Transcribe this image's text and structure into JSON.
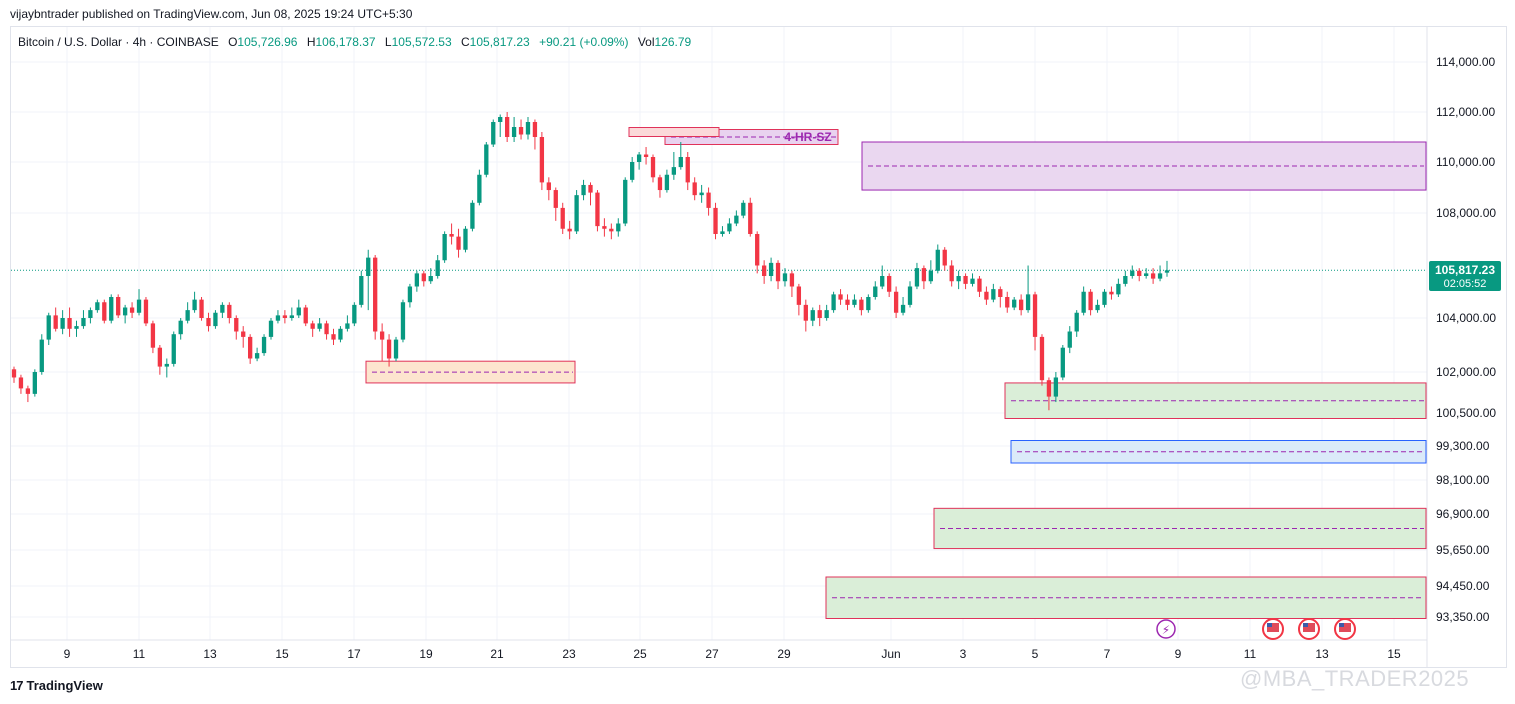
{
  "header": {
    "published": "vijaybntrader published on TradingView.com, Jun 08, 2025 19:24 UTC+5:30"
  },
  "legend": {
    "symbol": "Bitcoin / U.S. Dollar · 4h · COINBASE",
    "o_label": "O",
    "o_value": "105,726.96",
    "h_label": "H",
    "h_value": "106,178.37",
    "l_label": "L",
    "l_value": "105,572.53",
    "c_label": "C",
    "c_value": "105,817.23",
    "change": "+90.21 (+0.09%)",
    "vol_label": "Vol",
    "vol_value": "126.79"
  },
  "price_tag": {
    "price": "105,817.23",
    "countdown": "02:05:52"
  },
  "footer": {
    "brand": "TradingView",
    "watermark": "@MBA_TRADER2025"
  },
  "colors": {
    "up": "#089981",
    "down": "#f23645",
    "purple": "#9c27b0",
    "red_border": "#e0325a",
    "blue_border": "#2962ff"
  },
  "chart_data": {
    "type": "candlestick",
    "interval": "4h",
    "y_axis_ticks": [
      "114,000.00",
      "112,000.00",
      "110,000.00",
      "108,000.00",
      "104,000.00",
      "102,000.00",
      "100,500.00",
      "99,300.00",
      "98,100.00",
      "96,900.00",
      "95,650.00",
      "94,450.00",
      "93,350.00"
    ],
    "x_axis_ticks": [
      "9",
      "11",
      "13",
      "15",
      "17",
      "19",
      "21",
      "23",
      "25",
      "27",
      "29",
      "Jun",
      "3",
      "5",
      "7",
      "9",
      "11",
      "13",
      "15"
    ],
    "last_price": 105817.23,
    "zones": [
      {
        "label": "4-HR-SZ",
        "low": 110700,
        "high": 111300,
        "color": "purple"
      },
      {
        "label": "",
        "low": 108900,
        "high": 110800,
        "color": "purple"
      },
      {
        "label": "",
        "low": 101600,
        "high": 102400,
        "color": "orange"
      },
      {
        "label": "",
        "low": 100300,
        "high": 101600,
        "color": "green"
      },
      {
        "label": "",
        "low": 98700,
        "high": 99500,
        "color": "blue"
      },
      {
        "label": "",
        "low": 95700,
        "high": 97100,
        "color": "green"
      },
      {
        "label": "",
        "low": 93300,
        "high": 94750,
        "color": "green"
      }
    ],
    "candles": [
      [
        102100,
        101800,
        102200,
        101600
      ],
      [
        101800,
        101400,
        101900,
        101200
      ],
      [
        101400,
        101200,
        101500,
        100900
      ],
      [
        101200,
        102000,
        102100,
        101100
      ],
      [
        102000,
        103200,
        103400,
        101900
      ],
      [
        103200,
        104100,
        104200,
        103000
      ],
      [
        104100,
        103600,
        104400,
        103500
      ],
      [
        103600,
        104000,
        104300,
        103400
      ],
      [
        104000,
        103600,
        104400,
        103300
      ],
      [
        103600,
        103700,
        103900,
        103300
      ],
      [
        103700,
        104000,
        104300,
        103600
      ],
      [
        104000,
        104300,
        104400,
        103800
      ],
      [
        104300,
        104600,
        104700,
        104200
      ],
      [
        104600,
        103900,
        104700,
        103800
      ],
      [
        103900,
        104800,
        104900,
        103800
      ],
      [
        104800,
        104100,
        104900,
        104000
      ],
      [
        104100,
        104400,
        104500,
        103800
      ],
      [
        104400,
        104200,
        104600,
        104000
      ],
      [
        104200,
        104700,
        105100,
        104100
      ],
      [
        104700,
        103800,
        104800,
        103700
      ],
      [
        103800,
        102900,
        103900,
        102700
      ],
      [
        102900,
        102200,
        103000,
        101900
      ],
      [
        102200,
        102300,
        102500,
        101800
      ],
      [
        102300,
        103400,
        103500,
        102200
      ],
      [
        103400,
        103900,
        104000,
        103200
      ],
      [
        103900,
        104300,
        104600,
        103800
      ],
      [
        104300,
        104700,
        105000,
        104200
      ],
      [
        104700,
        104000,
        104800,
        103900
      ],
      [
        104000,
        103700,
        104200,
        103500
      ],
      [
        103700,
        104200,
        104300,
        103600
      ],
      [
        104200,
        104500,
        104600,
        104000
      ],
      [
        104500,
        104000,
        104600,
        103800
      ],
      [
        104000,
        103500,
        104100,
        103200
      ],
      [
        103500,
        103300,
        103700,
        102900
      ],
      [
        103300,
        102500,
        103400,
        102300
      ],
      [
        102500,
        102700,
        102900,
        102400
      ],
      [
        102700,
        103300,
        103400,
        102600
      ],
      [
        103300,
        103900,
        104000,
        103200
      ],
      [
        103900,
        104100,
        104300,
        103800
      ],
      [
        104100,
        104000,
        104300,
        103800
      ],
      [
        104000,
        104100,
        104400,
        103900
      ],
      [
        104100,
        104400,
        104700,
        104000
      ],
      [
        104400,
        103800,
        104500,
        103700
      ],
      [
        103800,
        103600,
        103900,
        103300
      ],
      [
        103600,
        103800,
        104000,
        103500
      ],
      [
        103800,
        103400,
        103900,
        103200
      ],
      [
        103400,
        103200,
        103600,
        103000
      ],
      [
        103200,
        103600,
        103700,
        103100
      ],
      [
        103600,
        103800,
        104100,
        103500
      ],
      [
        103800,
        104500,
        104600,
        103700
      ],
      [
        104500,
        105600,
        105800,
        104400
      ],
      [
        105600,
        106300,
        106600,
        104300
      ],
      [
        106300,
        103500,
        106400,
        103200
      ],
      [
        103500,
        103200,
        103800,
        102400
      ],
      [
        103200,
        102500,
        103400,
        102200
      ],
      [
        102500,
        103200,
        103300,
        102400
      ],
      [
        103200,
        104600,
        104700,
        103100
      ],
      [
        104600,
        105200,
        105300,
        104400
      ],
      [
        105200,
        105700,
        105800,
        105000
      ],
      [
        105700,
        105400,
        105800,
        105200
      ],
      [
        105400,
        105600,
        105900,
        105300
      ],
      [
        105600,
        106200,
        106400,
        105500
      ],
      [
        106200,
        107200,
        107300,
        106100
      ],
      [
        107200,
        107100,
        107600,
        106800
      ],
      [
        107100,
        106600,
        107400,
        106300
      ],
      [
        106600,
        107400,
        107500,
        106500
      ],
      [
        107400,
        108400,
        108500,
        107300
      ],
      [
        108400,
        109500,
        109700,
        108300
      ],
      [
        109500,
        110700,
        110800,
        109400
      ],
      [
        110700,
        111600,
        111700,
        110600
      ],
      [
        111600,
        111800,
        111900,
        111000
      ],
      [
        111800,
        111000,
        112000,
        110800
      ],
      [
        111000,
        111400,
        111800,
        110800
      ],
      [
        111400,
        111100,
        111700,
        110900
      ],
      [
        111100,
        111600,
        111800,
        110900
      ],
      [
        111600,
        111000,
        111700,
        110500
      ],
      [
        111000,
        109200,
        111200,
        108900
      ],
      [
        109200,
        108900,
        109400,
        108500
      ],
      [
        108900,
        108200,
        109000,
        107700
      ],
      [
        108200,
        107400,
        108400,
        107200
      ],
      [
        107400,
        107300,
        107700,
        107000
      ],
      [
        107300,
        108700,
        108900,
        107200
      ],
      [
        108700,
        109100,
        109300,
        108500
      ],
      [
        109100,
        108800,
        109200,
        108300
      ],
      [
        108800,
        107500,
        108900,
        107300
      ],
      [
        107500,
        107400,
        107800,
        107100
      ],
      [
        107400,
        107300,
        107600,
        107000
      ],
      [
        107300,
        107600,
        107800,
        107100
      ],
      [
        107600,
        109300,
        109400,
        107500
      ],
      [
        109300,
        110000,
        110200,
        109200
      ],
      [
        110000,
        110300,
        110400,
        109700
      ],
      [
        110300,
        110200,
        110600,
        109900
      ],
      [
        110200,
        109400,
        110300,
        109200
      ],
      [
        109400,
        108900,
        109500,
        108600
      ],
      [
        108900,
        109500,
        109700,
        108800
      ],
      [
        109500,
        109800,
        110400,
        109300
      ],
      [
        109800,
        110200,
        110800,
        109700
      ],
      [
        110200,
        109200,
        110400,
        108900
      ],
      [
        109200,
        108700,
        109400,
        108500
      ],
      [
        108700,
        108800,
        109100,
        108400
      ],
      [
        108800,
        108200,
        109000,
        107900
      ],
      [
        108200,
        107200,
        108400,
        107000
      ],
      [
        107200,
        107300,
        107500,
        107100
      ],
      [
        107300,
        107600,
        107800,
        107200
      ],
      [
        107600,
        107900,
        108100,
        107500
      ],
      [
        107900,
        108400,
        108500,
        107800
      ],
      [
        108400,
        107200,
        108600,
        107100
      ],
      [
        107200,
        106000,
        107300,
        105700
      ],
      [
        106000,
        105600,
        106200,
        105300
      ],
      [
        105600,
        106100,
        106300,
        105400
      ],
      [
        106100,
        105400,
        106200,
        105100
      ],
      [
        105400,
        105700,
        105900,
        105200
      ],
      [
        105700,
        105200,
        105800,
        104800
      ],
      [
        105200,
        104500,
        105300,
        104100
      ],
      [
        104500,
        103900,
        104700,
        103500
      ],
      [
        103900,
        104300,
        104400,
        103700
      ],
      [
        104300,
        104000,
        104500,
        103700
      ],
      [
        104000,
        104300,
        104500,
        103900
      ],
      [
        104300,
        104900,
        105000,
        104200
      ],
      [
        104900,
        104700,
        105100,
        104500
      ],
      [
        104700,
        104500,
        104900,
        104300
      ],
      [
        104500,
        104700,
        104900,
        104400
      ],
      [
        104700,
        104300,
        104800,
        104100
      ],
      [
        104300,
        104800,
        104900,
        104200
      ],
      [
        104800,
        105200,
        105400,
        104700
      ],
      [
        105200,
        105600,
        106000,
        105100
      ],
      [
        105600,
        105000,
        105700,
        104800
      ],
      [
        105000,
        104200,
        105200,
        104000
      ],
      [
        104200,
        104500,
        104800,
        104100
      ],
      [
        104500,
        105200,
        105400,
        104400
      ],
      [
        105200,
        105900,
        106100,
        105100
      ],
      [
        105900,
        105400,
        106000,
        105100
      ],
      [
        105400,
        105800,
        106200,
        105300
      ],
      [
        105800,
        106600,
        106800,
        105700
      ],
      [
        106600,
        106000,
        106700,
        105800
      ],
      [
        106000,
        105400,
        106200,
        105200
      ],
      [
        105400,
        105600,
        105800,
        105100
      ],
      [
        105600,
        105300,
        105700,
        105100
      ],
      [
        105300,
        105500,
        105700,
        105200
      ],
      [
        105500,
        105000,
        105600,
        104800
      ],
      [
        105000,
        104700,
        105200,
        104500
      ],
      [
        104700,
        105100,
        105300,
        104600
      ],
      [
        105100,
        104800,
        105200,
        104400
      ],
      [
        104800,
        104400,
        105000,
        104200
      ],
      [
        104400,
        104700,
        104800,
        104300
      ],
      [
        104700,
        104300,
        104900,
        104100
      ],
      [
        104300,
        104900,
        106000,
        104200
      ],
      [
        104900,
        103300,
        105000,
        102800
      ],
      [
        103300,
        101700,
        103400,
        101500
      ],
      [
        101700,
        101100,
        101800,
        100600
      ],
      [
        101100,
        101800,
        102000,
        100900
      ],
      [
        101800,
        102900,
        103000,
        101700
      ],
      [
        102900,
        103500,
        103700,
        102700
      ],
      [
        103500,
        104200,
        104300,
        103300
      ],
      [
        104200,
        105000,
        105200,
        104100
      ],
      [
        105000,
        104300,
        105100,
        104100
      ],
      [
        104300,
        104500,
        104700,
        104200
      ],
      [
        104500,
        105000,
        105100,
        104400
      ],
      [
        105000,
        104900,
        105200,
        104700
      ],
      [
        104900,
        105300,
        105500,
        104800
      ],
      [
        105300,
        105600,
        105800,
        105200
      ],
      [
        105600,
        105800,
        106000,
        105500
      ],
      [
        105800,
        105600,
        105900,
        105400
      ],
      [
        105600,
        105700,
        105900,
        105500
      ],
      [
        105700,
        105500,
        105900,
        105300
      ],
      [
        105500,
        105700,
        106000,
        105400
      ],
      [
        105727,
        105817,
        106178,
        105573
      ]
    ]
  }
}
